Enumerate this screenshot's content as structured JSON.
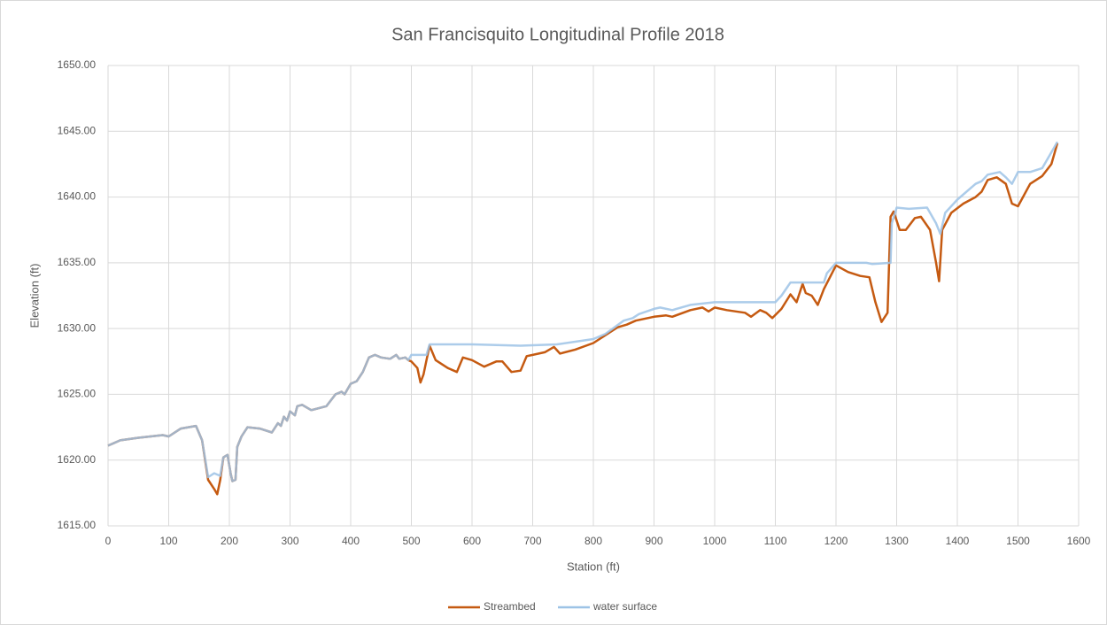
{
  "chart_data": {
    "type": "line",
    "title": "San Francisquito Longitudinal Profile 2018",
    "x_label": "Station (ft)",
    "y_label": "Elevation (ft)",
    "xlim": [
      0,
      1600
    ],
    "xticks": [
      0,
      100,
      200,
      300,
      400,
      500,
      600,
      700,
      800,
      900,
      1000,
      1100,
      1200,
      1300,
      1400,
      1500,
      1600
    ],
    "ylim": [
      1615,
      1650
    ],
    "yticks": [
      {
        "value": 1615,
        "label": "1615.00"
      },
      {
        "value": 1620,
        "label": "1620.00"
      },
      {
        "value": 1625,
        "label": "1625.00"
      },
      {
        "value": 1630,
        "label": "1630.00"
      },
      {
        "value": 1635,
        "label": "1635.00"
      },
      {
        "value": 1640,
        "label": "1640.00"
      },
      {
        "value": 1645,
        "label": "1645.00"
      },
      {
        "value": 1650,
        "label": "1650.00"
      }
    ],
    "grid": true,
    "legend": "bottom",
    "series": [
      {
        "name": "Streambed",
        "color": "#c55a11",
        "x": [
          0,
          20,
          50,
          90,
          100,
          120,
          145,
          155,
          165,
          175,
          180,
          185,
          190,
          197,
          202,
          205,
          210,
          213,
          220,
          230,
          250,
          270,
          280,
          285,
          290,
          295,
          300,
          308,
          312,
          320,
          335,
          360,
          375,
          385,
          390,
          400,
          410,
          420,
          430,
          440,
          450,
          465,
          475,
          480,
          490,
          495,
          500,
          510,
          515,
          520,
          525,
          530,
          540,
          560,
          575,
          585,
          600,
          620,
          640,
          650,
          665,
          680,
          690,
          700,
          720,
          735,
          745,
          770,
          800,
          820,
          840,
          855,
          870,
          900,
          920,
          930,
          960,
          980,
          990,
          1000,
          1020,
          1050,
          1060,
          1075,
          1085,
          1095,
          1110,
          1125,
          1135,
          1145,
          1150,
          1160,
          1170,
          1180,
          1200,
          1220,
          1240,
          1255,
          1265,
          1275,
          1285,
          1290,
          1295,
          1305,
          1315,
          1330,
          1340,
          1355,
          1365,
          1370,
          1375,
          1390,
          1410,
          1430,
          1440,
          1450,
          1465,
          1480,
          1490,
          1500,
          1520,
          1540,
          1555,
          1565
        ],
        "values": [
          1621.1,
          1621.5,
          1621.7,
          1621.9,
          1621.8,
          1622.4,
          1622.6,
          1621.5,
          1618.5,
          1617.8,
          1617.4,
          1618.5,
          1620.2,
          1620.4,
          1619.0,
          1618.4,
          1618.5,
          1621.0,
          1621.8,
          1622.5,
          1622.4,
          1622.1,
          1622.8,
          1622.6,
          1623.3,
          1623.0,
          1623.7,
          1623.4,
          1624.1,
          1624.2,
          1623.8,
          1624.1,
          1625.0,
          1625.2,
          1625.0,
          1625.8,
          1626.0,
          1626.7,
          1627.8,
          1628.0,
          1627.8,
          1627.7,
          1628.0,
          1627.7,
          1627.8,
          1627.6,
          1627.5,
          1627.0,
          1625.9,
          1626.5,
          1627.6,
          1628.7,
          1627.6,
          1627.0,
          1626.7,
          1627.8,
          1627.6,
          1627.1,
          1627.5,
          1627.5,
          1626.7,
          1626.8,
          1627.9,
          1628.0,
          1628.2,
          1628.6,
          1628.1,
          1628.4,
          1628.9,
          1629.5,
          1630.1,
          1630.3,
          1630.6,
          1630.9,
          1631.0,
          1630.9,
          1631.4,
          1631.6,
          1631.3,
          1631.6,
          1631.4,
          1631.2,
          1630.9,
          1631.4,
          1631.2,
          1630.8,
          1631.5,
          1632.6,
          1632.0,
          1633.4,
          1632.7,
          1632.5,
          1631.8,
          1633.0,
          1634.8,
          1634.3,
          1634.0,
          1633.9,
          1632.0,
          1630.5,
          1631.2,
          1638.5,
          1638.9,
          1637.5,
          1637.5,
          1638.4,
          1638.5,
          1637.5,
          1635.0,
          1633.6,
          1637.5,
          1638.8,
          1639.5,
          1640.0,
          1640.4,
          1641.3,
          1641.5,
          1641.0,
          1639.5,
          1639.3,
          1641.0,
          1641.6,
          1642.5,
          1644.1
        ]
      },
      {
        "name": "water surface",
        "color": "#9dc3e6",
        "x": [
          0,
          20,
          50,
          90,
          100,
          120,
          145,
          155,
          165,
          175,
          185,
          190,
          197,
          202,
          205,
          210,
          213,
          220,
          230,
          250,
          270,
          280,
          285,
          290,
          295,
          300,
          308,
          312,
          320,
          335,
          360,
          375,
          385,
          390,
          400,
          410,
          420,
          430,
          440,
          450,
          465,
          475,
          480,
          490,
          495,
          500,
          525,
          530,
          600,
          680,
          740,
          800,
          820,
          850,
          865,
          875,
          900,
          910,
          930,
          960,
          1000,
          1100,
          1110,
          1125,
          1180,
          1185,
          1200,
          1250,
          1260,
          1290,
          1292,
          1300,
          1320,
          1350,
          1365,
          1372,
          1380,
          1400,
          1430,
          1440,
          1450,
          1470,
          1480,
          1490,
          1500,
          1520,
          1540,
          1565
        ],
        "values": [
          1621.1,
          1621.5,
          1621.7,
          1621.9,
          1621.8,
          1622.4,
          1622.6,
          1621.5,
          1618.7,
          1619.0,
          1618.8,
          1620.2,
          1620.4,
          1619.0,
          1618.4,
          1618.5,
          1621.0,
          1621.8,
          1622.5,
          1622.4,
          1622.1,
          1622.8,
          1622.6,
          1623.3,
          1623.0,
          1623.7,
          1623.4,
          1624.1,
          1624.2,
          1623.8,
          1624.1,
          1625.0,
          1625.2,
          1625.0,
          1625.8,
          1626.0,
          1626.7,
          1627.8,
          1628.0,
          1627.8,
          1627.7,
          1628.0,
          1627.7,
          1627.8,
          1627.6,
          1628.0,
          1628.0,
          1628.8,
          1628.8,
          1628.7,
          1628.8,
          1629.2,
          1629.6,
          1630.6,
          1630.8,
          1631.1,
          1631.5,
          1631.6,
          1631.4,
          1631.8,
          1632.0,
          1632.0,
          1632.5,
          1633.5,
          1633.5,
          1634.2,
          1635.0,
          1635.0,
          1634.9,
          1635.0,
          1638.0,
          1639.2,
          1639.1,
          1639.2,
          1638.0,
          1637.2,
          1638.8,
          1639.8,
          1641.0,
          1641.2,
          1641.7,
          1641.9,
          1641.5,
          1641.0,
          1641.9,
          1641.9,
          1642.2,
          1644.2
        ]
      }
    ]
  }
}
